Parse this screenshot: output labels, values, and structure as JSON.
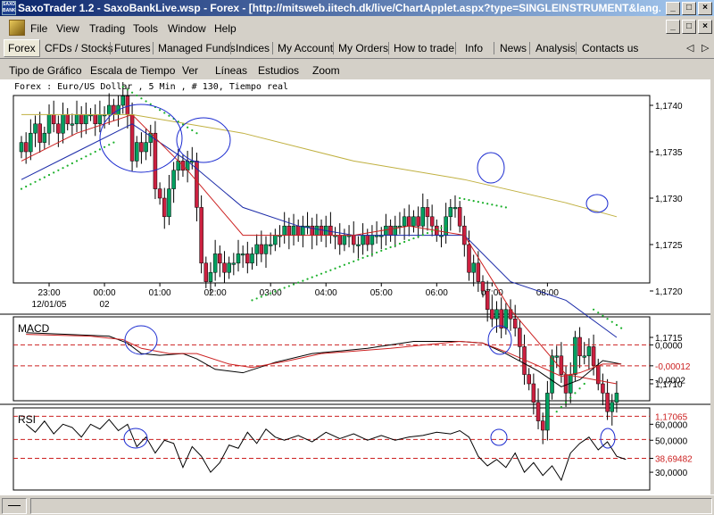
{
  "window": {
    "title": "SaxoTrader 1.2 - SaxoBankLive.wsp - Forex - [http://mitsweb.iitech.dk/live/ChartApplet.aspx?type=SINGLEINSTRUMENT&lang...",
    "icon_text": "SAXO BANK"
  },
  "menu": [
    "File",
    "View",
    "Trading",
    "Tools",
    "Window",
    "Help"
  ],
  "tabs": [
    "Forex",
    "CFDs / Stocks",
    "Futures",
    "Managed Funds",
    "Indices",
    "My Account",
    "My Orders",
    "How to trade",
    "Info",
    "News",
    "Analysis",
    "Contacts us"
  ],
  "tab_nav": {
    "prev": "◁",
    "next": "▷"
  },
  "chart_menu": [
    "Tipo de Gráfico",
    "Escala de Tiempo",
    "Ver",
    "Líneas",
    "Estudios",
    "Zoom"
  ],
  "chart_header": "Forex : Euro/US Dollar , 5 Min , # 130, Tiempo real",
  "colors": {
    "bull": "#00a060",
    "bear": "#cc2040",
    "blue_line": "#1a2aa8",
    "red_line": "#cc2020",
    "olive_line": "#c0b040",
    "psar": "#1ab02a",
    "annotation": "#1a2ad0",
    "ref_line": "#cc2020"
  },
  "chart_data": [
    {
      "type": "candlestick",
      "title": "Forex : Euro/US Dollar , 5 Min , # 130, Tiempo real",
      "x_ticks": [
        "23:00",
        "00:00",
        "01:00",
        "02:00",
        "03:00",
        "04:00",
        "05:00",
        "06:00",
        "07:00",
        "08:00"
      ],
      "x_date_labels": {
        "23:00": "12/01/05",
        "00:00": "02"
      },
      "y_ticks": [
        "1,1740",
        "1,1735",
        "1,1730",
        "1,1725",
        "1,1720",
        "1,1715",
        "1,1710"
      ],
      "ylim": [
        1.17035,
        1.17425
      ],
      "reference_line": {
        "value": 1.17065,
        "label": "1,17065"
      },
      "bars_per_hour": 12,
      "start_time": "22:30",
      "closes": [
        1.1736,
        1.1735,
        1.1737,
        1.1738,
        1.1736,
        1.1737,
        1.1739,
        1.1738,
        1.1737,
        1.1739,
        1.1738,
        1.1738,
        1.1739,
        1.1738,
        1.1739,
        1.1739,
        1.1738,
        1.1739,
        1.1739,
        1.174,
        1.1739,
        1.174,
        1.1741,
        1.1739,
        1.1734,
        1.1736,
        1.1735,
        1.1736,
        1.1737,
        1.1731,
        1.173,
        1.1728,
        1.1731,
        1.1733,
        1.1734,
        1.1733,
        1.1734,
        1.1734,
        1.1729,
        1.1723,
        1.1721,
        1.1722,
        1.1724,
        1.1723,
        1.1722,
        1.1723,
        1.1723,
        1.1724,
        1.1724,
        1.1723,
        1.1724,
        1.1725,
        1.1724,
        1.1725,
        1.1725,
        1.1726,
        1.1726,
        1.1727,
        1.1726,
        1.1727,
        1.1726,
        1.1727,
        1.1727,
        1.1726,
        1.1727,
        1.1726,
        1.1727,
        1.1726,
        1.1726,
        1.1725,
        1.1726,
        1.1726,
        1.1725,
        1.1725,
        1.1726,
        1.1725,
        1.1726,
        1.1726,
        1.1726,
        1.1727,
        1.1726,
        1.1727,
        1.1727,
        1.1728,
        1.1727,
        1.1728,
        1.1727,
        1.1729,
        1.1728,
        1.1727,
        1.1726,
        1.1726,
        1.1728,
        1.1729,
        1.1729,
        1.1727,
        1.1725,
        1.1722,
        1.1723,
        1.1721,
        1.172,
        1.1718,
        1.1717,
        1.1718,
        1.1716,
        1.1718,
        1.1717,
        1.1716,
        1.1714,
        1.1711,
        1.171,
        1.1708,
        1.1706,
        1.1705,
        1.1709,
        1.1713,
        1.1713,
        1.1711,
        1.1709,
        1.1711,
        1.1715,
        1.1713,
        1.1713,
        1.1714,
        1.1712,
        1.171,
        1.1709,
        1.1707,
        1.1708,
        1.1709
      ],
      "series": [
        {
          "name": "",
          "kind": "moving_average",
          "color": "#1a2aa8",
          "values": [
            [
              0,
              1.1732
            ],
            [
              12,
              1.1735
            ],
            [
              24,
              1.1738
            ],
            [
              36,
              1.1734
            ],
            [
              48,
              1.1729
            ],
            [
              60,
              1.1727
            ],
            [
              72,
              1.1726
            ],
            [
              84,
              1.1726
            ],
            [
              96,
              1.1726
            ],
            [
              106,
              1.1721
            ],
            [
              118,
              1.1719
            ],
            [
              129,
              1.1715
            ]
          ]
        },
        {
          "name": "",
          "kind": "moving_average",
          "color": "#cc2020",
          "values": [
            [
              0,
              1.1734
            ],
            [
              12,
              1.1737
            ],
            [
              24,
              1.1739
            ],
            [
              36,
              1.1733
            ],
            [
              48,
              1.1726
            ],
            [
              60,
              1.1726
            ],
            [
              72,
              1.1726
            ],
            [
              84,
              1.1727
            ],
            [
              96,
              1.1726
            ],
            [
              106,
              1.1718
            ],
            [
              118,
              1.1711
            ],
            [
              129,
              1.171
            ]
          ]
        },
        {
          "name": "",
          "kind": "moving_average",
          "color": "#c0b040",
          "values": [
            [
              0,
              1.1739
            ],
            [
              24,
              1.1739
            ],
            [
              48,
              1.1737
            ],
            [
              72,
              1.1734
            ],
            [
              96,
              1.1732
            ],
            [
              118,
              1.17295
            ],
            [
              129,
              1.1728
            ]
          ]
        },
        {
          "name": "",
          "kind": "parabolic_sar",
          "color": "#1ab02a",
          "segments": [
            [
              [
                0,
                1.1731
              ],
              [
                20,
                1.1736
              ]
            ],
            [
              [
                22,
                1.1742
              ],
              [
                38,
                1.1737
              ]
            ],
            [
              [
                50,
                1.1719
              ],
              [
                92,
                1.1727
              ]
            ],
            [
              [
                95,
                1.173
              ],
              [
                105,
                1.1729
              ]
            ],
            [
              [
                116,
                1.1707
              ],
              [
                122,
                1.171
              ]
            ],
            [
              [
                124,
                1.1718
              ],
              [
                130,
                1.1716
              ]
            ]
          ]
        }
      ]
    },
    {
      "type": "line",
      "title": "MACD",
      "y_ticks": [
        "0,0000",
        "-0,00012",
        "-0,0002"
      ],
      "ylim": [
        -0.00031,
        0.00014
      ],
      "reference_lines": [
        {
          "value": 0.0,
          "label": ""
        },
        {
          "value": -0.00012,
          "label": "-0,00012"
        }
      ],
      "series": [
        {
          "name": "",
          "color": "#000000",
          "values": [
            [
              1,
              7e-05
            ],
            [
              10,
              6e-05
            ],
            [
              19,
              5e-05
            ],
            [
              23,
              1e-05
            ],
            [
              26,
              -5e-05
            ],
            [
              30,
              -6e-05
            ],
            [
              35,
              -5e-05
            ],
            [
              38,
              -8e-05
            ],
            [
              42,
              -0.00014
            ],
            [
              48,
              -0.00016
            ],
            [
              55,
              -0.0001
            ],
            [
              63,
              -5e-05
            ],
            [
              75,
              -2e-05
            ],
            [
              85,
              2e-05
            ],
            [
              95,
              2e-05
            ],
            [
              100,
              1e-05
            ],
            [
              105,
              -5e-05
            ],
            [
              112,
              -0.00015
            ],
            [
              117,
              -0.00024
            ],
            [
              121,
              -0.0002
            ],
            [
              126,
              -9e-05
            ],
            [
              130,
              -0.00011
            ]
          ]
        },
        {
          "name": "",
          "color": "#cc2020",
          "values": [
            [
              1,
              6e-05
            ],
            [
              15,
              5e-05
            ],
            [
              22,
              3e-05
            ],
            [
              26,
              -2e-05
            ],
            [
              32,
              -5e-05
            ],
            [
              38,
              -5e-05
            ],
            [
              45,
              -0.00011
            ],
            [
              50,
              -0.00013
            ],
            [
              58,
              -9e-05
            ],
            [
              65,
              -5e-05
            ],
            [
              80,
              -2e-05
            ],
            [
              95,
              2e-05
            ],
            [
              100,
              1e-05
            ],
            [
              105,
              -4e-05
            ],
            [
              112,
              -0.00012
            ],
            [
              117,
              -0.00018
            ],
            [
              121,
              -0.00016
            ],
            [
              126,
              -0.00011
            ],
            [
              130,
              -0.00011
            ]
          ]
        }
      ]
    },
    {
      "type": "line",
      "title": "RSI",
      "y_ticks": [
        "60,0000",
        "50,0000",
        "38,69482",
        "30,0000"
      ],
      "ylim": [
        20,
        68
      ],
      "reference_lines": [
        {
          "value": 50.5,
          "label": ""
        },
        {
          "value": 38.69482,
          "label": "38,69482"
        }
      ],
      "series": [
        {
          "name": "",
          "color": "#000000",
          "values": [
            [
              1,
              60
            ],
            [
              3,
              55
            ],
            [
              5,
              62
            ],
            [
              7,
              54
            ],
            [
              9,
              60
            ],
            [
              11,
              58
            ],
            [
              13,
              52
            ],
            [
              15,
              60
            ],
            [
              17,
              57
            ],
            [
              19,
              63
            ],
            [
              21,
              56
            ],
            [
              23,
              60
            ],
            [
              25,
              46
            ],
            [
              27,
              52
            ],
            [
              29,
              42
            ],
            [
              31,
              50
            ],
            [
              33,
              48
            ],
            [
              35,
              33
            ],
            [
              37,
              46
            ],
            [
              39,
              40
            ],
            [
              41,
              30
            ],
            [
              43,
              36
            ],
            [
              45,
              47
            ],
            [
              47,
              45
            ],
            [
              49,
              55
            ],
            [
              51,
              48
            ],
            [
              53,
              57
            ],
            [
              55,
              52
            ],
            [
              57,
              50
            ],
            [
              60,
              53
            ],
            [
              63,
              49
            ],
            [
              66,
              55
            ],
            [
              69,
              51
            ],
            [
              72,
              54
            ],
            [
              75,
              50
            ],
            [
              78,
              53
            ],
            [
              81,
              50
            ],
            [
              84,
              52
            ],
            [
              87,
              53
            ],
            [
              90,
              55
            ],
            [
              93,
              54
            ],
            [
              95,
              56
            ],
            [
              97,
              52
            ],
            [
              99,
              40
            ],
            [
              101,
              34
            ],
            [
              103,
              38
            ],
            [
              105,
              33
            ],
            [
              107,
              42
            ],
            [
              109,
              30
            ],
            [
              111,
              36
            ],
            [
              113,
              28
            ],
            [
              115,
              34
            ],
            [
              117,
              25
            ],
            [
              119,
              42
            ],
            [
              121,
              48
            ],
            [
              123,
              52
            ],
            [
              125,
              44
            ],
            [
              127,
              49
            ],
            [
              129,
              40
            ],
            [
              131,
              38
            ]
          ]
        }
      ]
    }
  ]
}
